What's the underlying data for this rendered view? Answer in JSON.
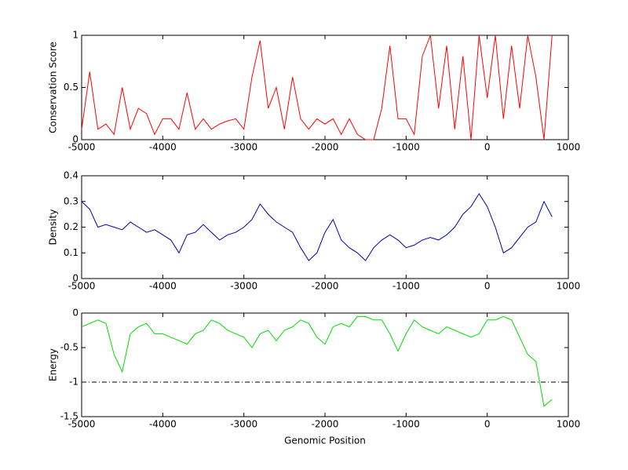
{
  "chart_data": [
    {
      "type": "line",
      "ylabel": "Conservation Score",
      "x": [
        -5000,
        -4900,
        -4800,
        -4700,
        -4600,
        -4500,
        -4400,
        -4300,
        -4200,
        -4100,
        -4000,
        -3900,
        -3800,
        -3700,
        -3600,
        -3500,
        -3400,
        -3300,
        -3200,
        -3100,
        -3000,
        -2900,
        -2800,
        -2700,
        -2600,
        -2500,
        -2400,
        -2300,
        -2200,
        -2100,
        -2000,
        -1900,
        -1800,
        -1700,
        -1600,
        -1500,
        -1400,
        -1300,
        -1200,
        -1100,
        -1000,
        -900,
        -800,
        -700,
        -600,
        -500,
        -400,
        -300,
        -200,
        -100,
        0,
        100,
        200,
        300,
        400,
        500,
        600,
        700,
        800
      ],
      "series": [
        {
          "color": "#ff0000",
          "values": [
            0.1,
            0.65,
            0.1,
            0.15,
            0.05,
            0.5,
            0.1,
            0.3,
            0.25,
            0.05,
            0.2,
            0.2,
            0.1,
            0.45,
            0.1,
            0.2,
            0.1,
            0.15,
            0.18,
            0.2,
            0.1,
            0.6,
            0.95,
            0.3,
            0.5,
            0.1,
            0.6,
            0.2,
            0.1,
            0.2,
            0.15,
            0.2,
            0.05,
            0.2,
            0.05,
            0,
            0,
            0.3,
            0.9,
            0.2,
            0.2,
            0.05,
            0.8,
            1,
            0.3,
            0.9,
            0.1,
            0.8,
            0,
            1,
            0.4,
            1,
            0.2,
            0.9,
            0.3,
            1,
            0.6,
            0,
            1
          ]
        }
      ],
      "xlim": [
        -5000,
        1000
      ],
      "xticks": [
        -5000,
        -4000,
        -3000,
        -2000,
        -1000,
        0,
        1000
      ],
      "ylim": [
        0,
        1
      ],
      "yticks": [
        0,
        0.5,
        1
      ]
    },
    {
      "type": "line",
      "ylabel": "Density",
      "x": [
        -5000,
        -4900,
        -4800,
        -4700,
        -4600,
        -4500,
        -4400,
        -4300,
        -4200,
        -4100,
        -4000,
        -3900,
        -3800,
        -3700,
        -3600,
        -3500,
        -3400,
        -3300,
        -3200,
        -3100,
        -3000,
        -2900,
        -2800,
        -2700,
        -2600,
        -2500,
        -2400,
        -2300,
        -2200,
        -2100,
        -2000,
        -1900,
        -1800,
        -1700,
        -1600,
        -1500,
        -1400,
        -1300,
        -1200,
        -1100,
        -1000,
        -900,
        -800,
        -700,
        -600,
        -500,
        -400,
        -300,
        -200,
        -100,
        0,
        100,
        200,
        300,
        400,
        500,
        600,
        700,
        800
      ],
      "series": [
        {
          "color": "#0000aa",
          "values": [
            0.3,
            0.27,
            0.2,
            0.21,
            0.2,
            0.19,
            0.22,
            0.2,
            0.18,
            0.19,
            0.17,
            0.15,
            0.1,
            0.17,
            0.18,
            0.21,
            0.18,
            0.15,
            0.17,
            0.18,
            0.2,
            0.23,
            0.29,
            0.25,
            0.22,
            0.2,
            0.18,
            0.12,
            0.07,
            0.1,
            0.18,
            0.23,
            0.15,
            0.12,
            0.1,
            0.07,
            0.12,
            0.15,
            0.17,
            0.15,
            0.12,
            0.13,
            0.15,
            0.16,
            0.15,
            0.17,
            0.2,
            0.25,
            0.28,
            0.33,
            0.28,
            0.2,
            0.1,
            0.12,
            0.16,
            0.2,
            0.22,
            0.3,
            0.24
          ]
        }
      ],
      "xlim": [
        -5000,
        1000
      ],
      "xticks": [
        -5000,
        -4000,
        -3000,
        -2000,
        -1000,
        0,
        1000
      ],
      "ylim": [
        0,
        0.4
      ],
      "yticks": [
        0,
        0.1,
        0.2,
        0.3,
        0.4
      ]
    },
    {
      "type": "line",
      "ylabel": "Energy",
      "xlabel": "Genomic Position",
      "x": [
        -5000,
        -4900,
        -4800,
        -4700,
        -4600,
        -4500,
        -4400,
        -4300,
        -4200,
        -4100,
        -4000,
        -3900,
        -3800,
        -3700,
        -3600,
        -3500,
        -3400,
        -3300,
        -3200,
        -3100,
        -3000,
        -2900,
        -2800,
        -2700,
        -2600,
        -2500,
        -2400,
        -2300,
        -2200,
        -2100,
        -2000,
        -1900,
        -1800,
        -1700,
        -1600,
        -1500,
        -1400,
        -1300,
        -1200,
        -1100,
        -1000,
        -900,
        -800,
        -700,
        -600,
        -500,
        -400,
        -300,
        -200,
        -100,
        0,
        100,
        200,
        300,
        400,
        500,
        600,
        700,
        800
      ],
      "series": [
        {
          "color": "#00dd00",
          "values": [
            -0.2,
            -0.15,
            -0.1,
            -0.15,
            -0.6,
            -0.85,
            -0.3,
            -0.2,
            -0.15,
            -0.3,
            -0.3,
            -0.35,
            -0.4,
            -0.45,
            -0.3,
            -0.25,
            -0.1,
            -0.15,
            -0.25,
            -0.3,
            -0.35,
            -0.5,
            -0.3,
            -0.25,
            -0.4,
            -0.25,
            -0.2,
            -0.1,
            -0.15,
            -0.35,
            -0.45,
            -0.2,
            -0.15,
            -0.2,
            -0.05,
            -0.05,
            -0.1,
            -0.1,
            -0.3,
            -0.55,
            -0.3,
            -0.1,
            -0.2,
            -0.25,
            -0.3,
            -0.2,
            -0.25,
            -0.3,
            -0.35,
            -0.3,
            -0.1,
            -0.1,
            -0.05,
            -0.1,
            -0.35,
            -0.6,
            -0.7,
            -1.35,
            -1.25
          ]
        }
      ],
      "reference_line": {
        "value": -1,
        "color": "#000000"
      },
      "xlim": [
        -5000,
        1000
      ],
      "xticks": [
        -5000,
        -4000,
        -3000,
        -2000,
        -1000,
        0,
        1000
      ],
      "ylim": [
        -1.5,
        0
      ],
      "yticks": [
        -1.5,
        -1,
        -0.5,
        0
      ]
    }
  ]
}
